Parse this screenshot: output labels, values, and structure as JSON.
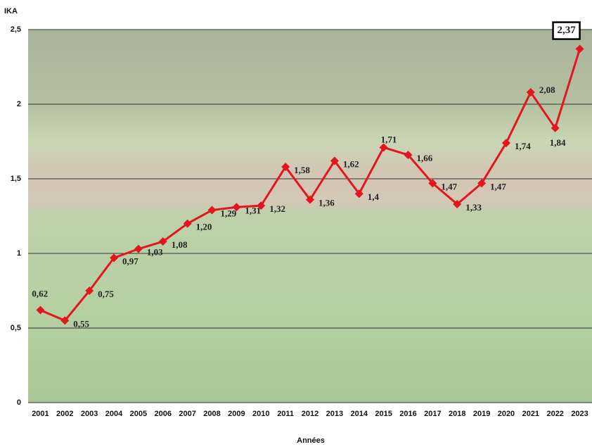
{
  "chart_data": {
    "type": "line",
    "y_label": "IKA",
    "x_label": "Années",
    "categories": [
      "2001",
      "2002",
      "2003",
      "2004",
      "2005",
      "2006",
      "2007",
      "2008",
      "2009",
      "2010",
      "2011",
      "2012",
      "2013",
      "2014",
      "2015",
      "2016",
      "2017",
      "2018",
      "2019",
      "2020",
      "2021",
      "2022",
      "2023"
    ],
    "series": [
      {
        "color": "#e3161d",
        "values": [
          0.62,
          0.55,
          0.75,
          0.97,
          1.03,
          1.08,
          1.2,
          1.29,
          1.31,
          1.32,
          1.58,
          1.36,
          1.62,
          1.4,
          1.71,
          1.66,
          1.47,
          1.33,
          1.47,
          1.74,
          2.08,
          1.84,
          2.37
        ],
        "value_labels": [
          "0,62",
          "0,55",
          "0,75",
          "0,97",
          "1,03",
          "1,08",
          "1,20",
          "1,29",
          "1,31",
          "1,32",
          "1,58",
          "1,36",
          "1,62",
          "1,4",
          "1,71",
          "1,66",
          "1,47",
          "1,33",
          "1,47",
          "1,74",
          "2,08",
          "1,84",
          "2,37"
        ]
      }
    ],
    "ylim": [
      0,
      2.5
    ],
    "yticks": [
      0,
      {
        "value": 0.5,
        "label": "0,5"
      },
      1,
      {
        "value": 1.5,
        "label": "1,5"
      },
      2,
      {
        "value": 2.5,
        "label": "2,5"
      }
    ],
    "grid": true
  }
}
